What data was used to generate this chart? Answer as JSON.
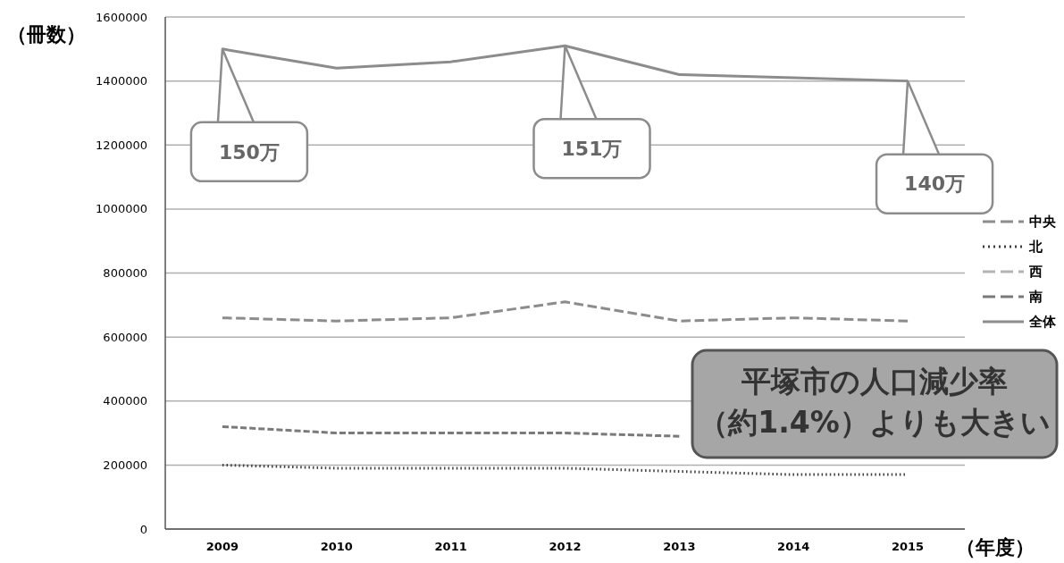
{
  "chart_data": {
    "type": "line",
    "xlabel": "（年度）",
    "ylabel": "（冊数）",
    "categories": [
      "2009",
      "2010",
      "2011",
      "2012",
      "2013",
      "2014",
      "2015"
    ],
    "series": [
      {
        "name": "中央",
        "color": "#8c8c8c",
        "line_style": "dashed",
        "values": [
          660000,
          650000,
          660000,
          710000,
          650000,
          660000,
          650000
        ]
      },
      {
        "name": "北",
        "color": "#404040",
        "line_style": "dotted",
        "values": [
          200000,
          190000,
          190000,
          190000,
          180000,
          170000,
          170000
        ]
      },
      {
        "name": "西",
        "color": "#b4b4b4",
        "line_style": "dashed",
        "values": [
          null,
          null,
          null,
          null,
          null,
          null,
          null
        ]
      },
      {
        "name": "南",
        "color": "#7a7a7a",
        "line_style": "dashed",
        "values": [
          320000,
          300000,
          300000,
          300000,
          290000,
          null,
          null
        ]
      },
      {
        "name": "全体",
        "color": "#8c8c8c",
        "line_style": "solid",
        "values": [
          1500000,
          1440000,
          1460000,
          1510000,
          1420000,
          1410000,
          1400000
        ]
      }
    ],
    "ylim": [
      0,
      1600000
    ],
    "yticks": [
      0,
      200000,
      400000,
      600000,
      800000,
      1000000,
      1200000,
      1400000,
      1600000
    ],
    "grid": "y",
    "legend": "right",
    "marker": "none",
    "annotations": [
      {
        "text": "150万",
        "x": "2009",
        "y": 1500000
      },
      {
        "text": "151万",
        "x": "2012",
        "y": 1510000
      },
      {
        "text": "140万",
        "x": "2015",
        "y": 1400000
      },
      "平塚市の人口減少率",
      "（約1.4%）よりも大きい"
    ]
  }
}
